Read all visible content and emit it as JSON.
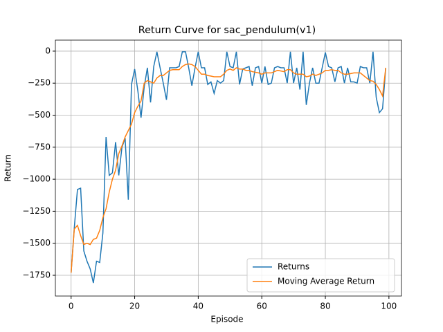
{
  "chart_data": {
    "type": "line",
    "title": "Return Curve for sac_pendulum(v1)",
    "xlabel": "Episode",
    "ylabel": "Return",
    "x": [
      0,
      1,
      2,
      3,
      4,
      5,
      6,
      7,
      8,
      9,
      10,
      11,
      12,
      13,
      14,
      15,
      16,
      17,
      18,
      19,
      20,
      21,
      22,
      23,
      24,
      25,
      26,
      27,
      28,
      29,
      30,
      31,
      32,
      33,
      34,
      35,
      36,
      37,
      38,
      39,
      40,
      41,
      42,
      43,
      44,
      45,
      46,
      47,
      48,
      49,
      50,
      51,
      52,
      53,
      54,
      55,
      56,
      57,
      58,
      59,
      60,
      61,
      62,
      63,
      64,
      65,
      66,
      67,
      68,
      69,
      70,
      71,
      72,
      73,
      74,
      75,
      76,
      77,
      78,
      79,
      80,
      81,
      82,
      83,
      84,
      85,
      86,
      87,
      88,
      89,
      90,
      91,
      92,
      93,
      94,
      95,
      96,
      97,
      98,
      99
    ],
    "series": [
      {
        "name": "Returns",
        "color": "#1f77b4",
        "values": [
          -1730,
          -1380,
          -1080,
          -1070,
          -1560,
          -1640,
          -1700,
          -1810,
          -1640,
          -1650,
          -1420,
          -670,
          -970,
          -950,
          -710,
          -970,
          -750,
          -680,
          -1160,
          -260,
          -140,
          -310,
          -520,
          -280,
          -130,
          -400,
          -120,
          -5,
          -130,
          -250,
          -380,
          -130,
          -130,
          -130,
          -120,
          -5,
          -5,
          -130,
          -270,
          -130,
          -5,
          -130,
          -130,
          -260,
          -240,
          -330,
          -230,
          -250,
          -230,
          -5,
          -120,
          -130,
          -5,
          -260,
          -140,
          -130,
          -120,
          -270,
          -130,
          -120,
          -250,
          -120,
          -260,
          -250,
          -130,
          -120,
          -130,
          -130,
          -250,
          -5,
          -250,
          -130,
          -300,
          -5,
          -420,
          -250,
          -130,
          -250,
          -250,
          -130,
          -10,
          -120,
          -130,
          -240,
          -130,
          -120,
          -250,
          -130,
          -240,
          -240,
          -250,
          -120,
          -130,
          -130,
          -250,
          -5,
          -360,
          -480,
          -450,
          -130
        ]
      },
      {
        "name": "Moving Average Return",
        "color": "#ff7f0e",
        "values": [
          -1730,
          -1390,
          -1360,
          -1440,
          -1510,
          -1500,
          -1510,
          -1470,
          -1460,
          -1400,
          -1300,
          -1230,
          -1100,
          -1000,
          -930,
          -800,
          -740,
          -670,
          -620,
          -570,
          -480,
          -430,
          -390,
          -250,
          -230,
          -240,
          -250,
          -210,
          -190,
          -190,
          -170,
          -150,
          -145,
          -145,
          -145,
          -120,
          -105,
          -100,
          -105,
          -120,
          -150,
          -180,
          -180,
          -190,
          -195,
          -200,
          -200,
          -200,
          -180,
          -150,
          -140,
          -150,
          -130,
          -140,
          -140,
          -150,
          -150,
          -160,
          -165,
          -170,
          -180,
          -170,
          -170,
          -170,
          -160,
          -150,
          -155,
          -160,
          -145,
          -145,
          -170,
          -180,
          -180,
          -180,
          -200,
          -195,
          -180,
          -190,
          -180,
          -170,
          -150,
          -150,
          -145,
          -150,
          -150,
          -170,
          -180,
          -180,
          -175,
          -170,
          -170,
          -170,
          -190,
          -210,
          -230,
          -235,
          -260,
          -300,
          -350,
          -130
        ]
      }
    ],
    "xlim": [
      -4.95,
      103.95
    ],
    "ylim": [
      -1912,
      86
    ],
    "xticks": [
      0,
      20,
      40,
      60,
      80,
      100
    ],
    "yticks": [
      {
        "value": -1750,
        "label": "−1750"
      },
      {
        "value": -1500,
        "label": "−1500"
      },
      {
        "value": -1250,
        "label": "−1250"
      },
      {
        "value": -1000,
        "label": "−1000"
      },
      {
        "value": -750,
        "label": "−750"
      },
      {
        "value": -500,
        "label": "−500"
      },
      {
        "value": -250,
        "label": "−250"
      },
      0
    ],
    "grid": true,
    "legend": "lower right"
  }
}
